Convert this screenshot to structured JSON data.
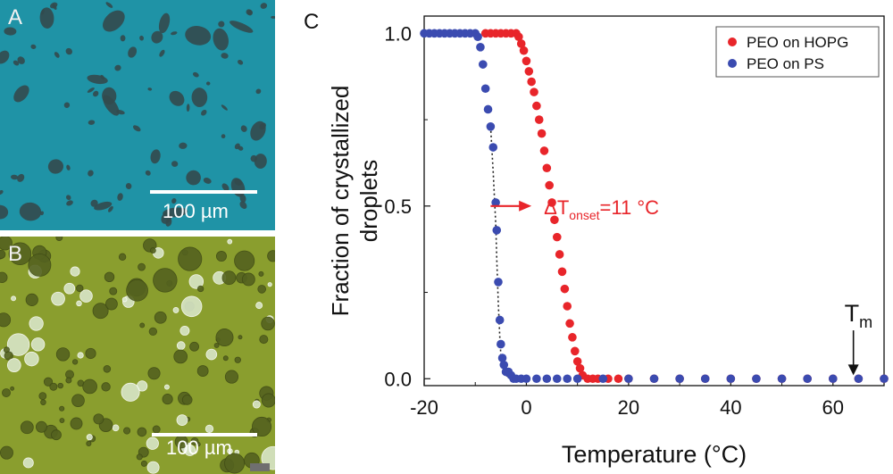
{
  "panels": {
    "a": {
      "letter": "A",
      "scale_label": "100 µm",
      "bg_color": "#1f93a6",
      "particle_color": "#334a4e"
    },
    "b": {
      "letter": "B",
      "scale_label": "100 µm",
      "bg_color": "#8a9e2e",
      "particle_color": "#54621f"
    },
    "c": {
      "letter": "C"
    }
  },
  "chart_data": {
    "type": "scatter",
    "xlabel": "Temperature (°C)",
    "ylabel": "Fraction of crystallized droplets",
    "xlim": [
      -20,
      70
    ],
    "ylim": [
      -0.02,
      1.05
    ],
    "xticks": [
      -20,
      0,
      20,
      40,
      60
    ],
    "yticks": [
      0.0,
      0.5,
      1.0
    ],
    "xtick_labels": [
      "-20",
      "0",
      "20",
      "40",
      "60"
    ],
    "ytick_labels": [
      "0.0",
      "0.5",
      "1.0"
    ],
    "legend": {
      "position": "top-right",
      "entries": [
        "PEO on HOPG",
        "PEO on PS"
      ]
    },
    "grid": false,
    "series": [
      {
        "name": "PEO on HOPG",
        "color": "#e8252a",
        "x": [
          -8,
          -7,
          -6,
          -5,
          -4,
          -3,
          -2,
          -1.5,
          -1,
          -0.5,
          0,
          0.5,
          1,
          1.5,
          2,
          2.5,
          3,
          3.5,
          4,
          4.5,
          5,
          5.5,
          6,
          6.5,
          7,
          7.5,
          8,
          8.5,
          9,
          9.5,
          10,
          10.5,
          11,
          12,
          13,
          14,
          16,
          18,
          20,
          25,
          30,
          35,
          40,
          45,
          50,
          55,
          60,
          65,
          70
        ],
        "y": [
          1.0,
          1.0,
          1.0,
          1.0,
          1.0,
          1.0,
          1.0,
          0.99,
          0.97,
          0.95,
          0.92,
          0.89,
          0.86,
          0.83,
          0.79,
          0.75,
          0.71,
          0.66,
          0.61,
          0.56,
          0.51,
          0.46,
          0.41,
          0.36,
          0.31,
          0.26,
          0.21,
          0.16,
          0.12,
          0.08,
          0.05,
          0.03,
          0.01,
          0.0,
          0.0,
          0.0,
          0.0,
          0.0,
          0.0,
          0.0,
          0.0,
          0.0,
          0.0,
          0.0,
          0.0,
          0.0,
          0.0,
          0.0,
          0.0
        ]
      },
      {
        "name": "PEO on PS",
        "color": "#3b4bb0",
        "x": [
          -20,
          -19,
          -18,
          -17,
          -16,
          -15,
          -14,
          -13,
          -12,
          -11,
          -10,
          -9.5,
          -9,
          -8.5,
          -8,
          -7.5,
          -7,
          -6.5,
          -6,
          -5.8,
          -5.5,
          -5.2,
          -5,
          -4.7,
          -4.4,
          -4,
          -3.5,
          -3,
          -2.5,
          -2,
          -1,
          0,
          2,
          4,
          6,
          8,
          10,
          15,
          20,
          25,
          30,
          35,
          40,
          45,
          50,
          55,
          60,
          65,
          70
        ],
        "y": [
          1.0,
          1.0,
          1.0,
          1.0,
          1.0,
          1.0,
          1.0,
          1.0,
          1.0,
          1.0,
          1.0,
          0.99,
          0.96,
          0.91,
          0.84,
          0.78,
          0.73,
          0.67,
          0.51,
          0.43,
          0.28,
          0.17,
          0.1,
          0.06,
          0.04,
          0.02,
          0.02,
          0.01,
          0.0,
          0.0,
          0.0,
          0.0,
          0.0,
          0.0,
          0.0,
          0.0,
          0.0,
          0.0,
          0.0,
          0.0,
          0.0,
          0.0,
          0.0,
          0.0,
          0.0,
          0.0,
          0.0,
          0.0,
          0.0
        ]
      }
    ],
    "fit_line": {
      "color": "#222222",
      "x": [
        -7,
        -6.5,
        -6,
        -5.8,
        -5.5,
        -5.2,
        -5,
        -4.7,
        -4.4,
        -4,
        -3.5,
        -3
      ],
      "y": [
        0.73,
        0.6,
        0.45,
        0.35,
        0.22,
        0.12,
        0.07,
        0.04,
        0.02,
        0.01,
        0.005,
        0.0
      ]
    },
    "annotations": {
      "delta": {
        "prefix": "ΔT",
        "subscript": "onset",
        "suffix": "=11 °C",
        "color": "#e8252a",
        "arrow_from": [
          -7,
          0.5
        ],
        "arrow_to": [
          1,
          0.5
        ]
      },
      "tm": {
        "base": "T",
        "subscript": "m",
        "arrow_x": 64,
        "arrow_from_y": 0.14,
        "arrow_to_y": 0.01
      }
    }
  }
}
